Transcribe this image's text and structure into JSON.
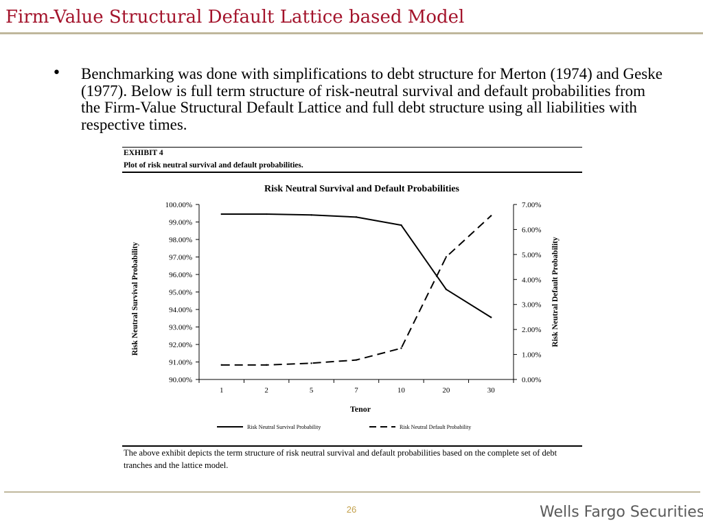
{
  "slide": {
    "title": "Firm-Value Structural Default Lattice based Model",
    "bullet": "Benchmarking was done with simplifications to debt structure for Merton (1974) and Geske (1977).  Below is full term structure of risk-neutral survival and default probabilities from the Firm-Value Structural Default Lattice and full debt structure using all liabilities with respective times.",
    "page_number": "26",
    "brand": "Wells Fargo Securities"
  },
  "exhibit": {
    "label": "EXHIBIT 4",
    "subtitle": "Plot of risk neutral survival and default probabilities.",
    "caption": "The above exhibit depicts the term structure of risk neutral survival and default probabilities based on the complete set of debt tranches and the lattice model."
  },
  "chart_data": {
    "type": "line",
    "title": "Risk Neutral Survival and Default Probabilities",
    "xlabel": "Tenor",
    "ylabel": "Risk Neutral Survival Probability",
    "y2label": "Risk Neutral Default Probability",
    "categories": [
      "1",
      "2",
      "5",
      "7",
      "10",
      "20",
      "30"
    ],
    "ylim": [
      90,
      100
    ],
    "y2lim": [
      0,
      7
    ],
    "yticks": [
      "100.00%",
      "99.00%",
      "98.00%",
      "97.00%",
      "96.00%",
      "95.00%",
      "94.00%",
      "93.00%",
      "92.00%",
      "91.00%",
      "90.00%"
    ],
    "y2ticks": [
      "7.00%",
      "6.00%",
      "5.00%",
      "4.00%",
      "3.00%",
      "2.00%",
      "1.00%",
      "0.00%"
    ],
    "grid": false,
    "legend_position": "bottom",
    "series": [
      {
        "name": "Risk Neutral Survival Probability",
        "axis": "left",
        "style": "solid",
        "values": [
          99.45,
          99.45,
          99.4,
          99.28,
          98.82,
          95.15,
          93.55
        ]
      },
      {
        "name": "Risk Neutral Default Probability",
        "axis": "right",
        "style": "dashed",
        "values": [
          0.58,
          0.58,
          0.65,
          0.78,
          1.25,
          4.9,
          6.55
        ]
      }
    ]
  }
}
